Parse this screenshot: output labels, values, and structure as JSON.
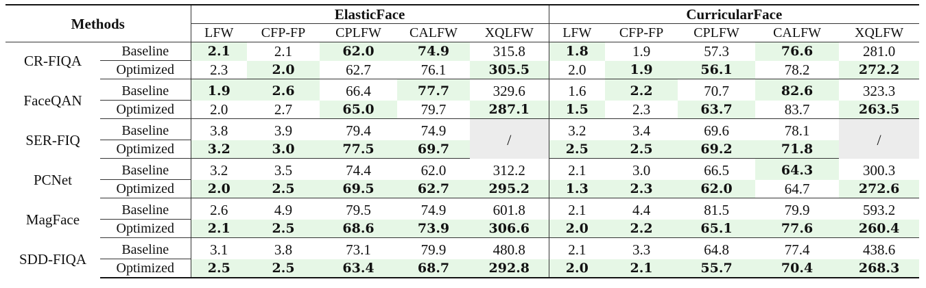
{
  "header": {
    "methods": "Methods",
    "groups": [
      "ElasticFace",
      "CurricularFace"
    ],
    "columns": [
      "LFW",
      "CFP-FP",
      "CPLFW",
      "CALFW",
      "XQLFW"
    ]
  },
  "highlight_color": "#e6f7e6",
  "na_color": "#ececec",
  "rows": [
    {
      "method": "CR-FIQA",
      "baseline": {
        "label": "Baseline",
        "cells": [
          {
            "v": "2.1",
            "b": true,
            "hl": true
          },
          {
            "v": "2.1"
          },
          {
            "v": "62.0",
            "b": true,
            "hl": true
          },
          {
            "v": "74.9",
            "b": true,
            "hl": true
          },
          {
            "v": "315.8"
          },
          {
            "v": "1.8",
            "b": true,
            "hl": true
          },
          {
            "v": "1.9"
          },
          {
            "v": "57.3"
          },
          {
            "v": "76.6",
            "b": true,
            "hl": true
          },
          {
            "v": "281.0"
          }
        ]
      },
      "optimized": {
        "label": "Optimized",
        "cells": [
          {
            "v": "2.3"
          },
          {
            "v": "2.0",
            "b": true,
            "hl": true
          },
          {
            "v": "62.7"
          },
          {
            "v": "76.1"
          },
          {
            "v": "305.5",
            "b": true,
            "hl": true
          },
          {
            "v": "2.0"
          },
          {
            "v": "1.9",
            "b": true,
            "hl": true
          },
          {
            "v": "56.1",
            "b": true,
            "hl": true
          },
          {
            "v": "78.2"
          },
          {
            "v": "272.2",
            "b": true,
            "hl": true
          }
        ]
      }
    },
    {
      "method": "FaceQAN",
      "baseline": {
        "label": "Baseline",
        "cells": [
          {
            "v": "1.9",
            "b": true,
            "hl": true
          },
          {
            "v": "2.6",
            "b": true,
            "hl": true
          },
          {
            "v": "66.4"
          },
          {
            "v": "77.7",
            "b": true,
            "hl": true
          },
          {
            "v": "329.6"
          },
          {
            "v": "1.6"
          },
          {
            "v": "2.2",
            "b": true,
            "hl": true
          },
          {
            "v": "70.7"
          },
          {
            "v": "82.6",
            "b": true,
            "hl": true
          },
          {
            "v": "323.3"
          }
        ]
      },
      "optimized": {
        "label": "Optimized",
        "cells": [
          {
            "v": "2.0"
          },
          {
            "v": "2.7"
          },
          {
            "v": "65.0",
            "b": true,
            "hl": true
          },
          {
            "v": "79.7"
          },
          {
            "v": "287.1",
            "b": true,
            "hl": true
          },
          {
            "v": "1.5",
            "b": true,
            "hl": true
          },
          {
            "v": "2.3"
          },
          {
            "v": "63.7",
            "b": true,
            "hl": true
          },
          {
            "v": "83.7"
          },
          {
            "v": "263.5",
            "b": true,
            "hl": true
          }
        ]
      }
    },
    {
      "method": "SER-FIQ",
      "na": "/",
      "baseline": {
        "label": "Baseline",
        "cells": [
          {
            "v": "3.8"
          },
          {
            "v": "3.9"
          },
          {
            "v": "79.4"
          },
          {
            "v": "74.9"
          },
          {
            "na": true
          },
          {
            "v": "3.2"
          },
          {
            "v": "3.4"
          },
          {
            "v": "69.6"
          },
          {
            "v": "78.1"
          },
          {
            "na": true
          }
        ]
      },
      "optimized": {
        "label": "Optimized",
        "cells": [
          {
            "v": "3.2",
            "b": true,
            "hl": true
          },
          {
            "v": "3.0",
            "b": true,
            "hl": true
          },
          {
            "v": "77.5",
            "b": true,
            "hl": true
          },
          {
            "v": "69.7",
            "b": true,
            "hl": true
          },
          {
            "na": true
          },
          {
            "v": "2.5",
            "b": true,
            "hl": true
          },
          {
            "v": "2.5",
            "b": true,
            "hl": true
          },
          {
            "v": "69.2",
            "b": true,
            "hl": true
          },
          {
            "v": "71.8",
            "b": true,
            "hl": true
          },
          {
            "na": true
          }
        ]
      }
    },
    {
      "method": "PCNet",
      "baseline": {
        "label": "Baseline",
        "cells": [
          {
            "v": "3.2"
          },
          {
            "v": "3.5"
          },
          {
            "v": "74.4"
          },
          {
            "v": "62.0"
          },
          {
            "v": "312.2"
          },
          {
            "v": "2.1"
          },
          {
            "v": "3.0"
          },
          {
            "v": "66.5"
          },
          {
            "v": "64.3",
            "b": true,
            "hl": true
          },
          {
            "v": "300.3"
          }
        ]
      },
      "optimized": {
        "label": "Optimized",
        "cells": [
          {
            "v": "2.0",
            "b": true,
            "hl": true
          },
          {
            "v": "2.5",
            "b": true,
            "hl": true
          },
          {
            "v": "69.5",
            "b": true,
            "hl": true
          },
          {
            "v": "62.7",
            "b": true,
            "hl": true
          },
          {
            "v": "295.2",
            "b": true,
            "hl": true
          },
          {
            "v": "1.3",
            "b": true,
            "hl": true
          },
          {
            "v": "2.3",
            "b": true,
            "hl": true
          },
          {
            "v": "62.0",
            "b": true,
            "hl": true
          },
          {
            "v": "64.7"
          },
          {
            "v": "272.6",
            "b": true,
            "hl": true
          }
        ]
      }
    },
    {
      "method": "MagFace",
      "baseline": {
        "label": "Baseline",
        "cells": [
          {
            "v": "2.6"
          },
          {
            "v": "4.9"
          },
          {
            "v": "79.5"
          },
          {
            "v": "74.9"
          },
          {
            "v": "601.8"
          },
          {
            "v": "2.1"
          },
          {
            "v": "4.4"
          },
          {
            "v": "81.5"
          },
          {
            "v": "79.9"
          },
          {
            "v": "593.2"
          }
        ]
      },
      "optimized": {
        "label": "Optimized",
        "cells": [
          {
            "v": "2.1",
            "b": true,
            "hl": true
          },
          {
            "v": "2.5",
            "b": true,
            "hl": true
          },
          {
            "v": "68.6",
            "b": true,
            "hl": true
          },
          {
            "v": "73.9",
            "b": true,
            "hl": true
          },
          {
            "v": "306.6",
            "b": true,
            "hl": true
          },
          {
            "v": "2.0",
            "b": true,
            "hl": true
          },
          {
            "v": "2.2",
            "b": true,
            "hl": true
          },
          {
            "v": "65.1",
            "b": true,
            "hl": true
          },
          {
            "v": "77.6",
            "b": true,
            "hl": true
          },
          {
            "v": "260.4",
            "b": true,
            "hl": true
          }
        ]
      }
    },
    {
      "method": "SDD-FIQA",
      "baseline": {
        "label": "Baseline",
        "cells": [
          {
            "v": "3.1"
          },
          {
            "v": "3.8"
          },
          {
            "v": "73.1"
          },
          {
            "v": "79.9"
          },
          {
            "v": "480.8"
          },
          {
            "v": "2.1"
          },
          {
            "v": "3.3"
          },
          {
            "v": "64.8"
          },
          {
            "v": "77.4"
          },
          {
            "v": "438.6"
          }
        ]
      },
      "optimized": {
        "label": "Optimized",
        "cells": [
          {
            "v": "2.5",
            "b": true,
            "hl": true
          },
          {
            "v": "2.5",
            "b": true,
            "hl": true
          },
          {
            "v": "63.4",
            "b": true,
            "hl": true
          },
          {
            "v": "68.7",
            "b": true,
            "hl": true
          },
          {
            "v": "292.8",
            "b": true,
            "hl": true
          },
          {
            "v": "2.0",
            "b": true,
            "hl": true
          },
          {
            "v": "2.1",
            "b": true,
            "hl": true
          },
          {
            "v": "55.7",
            "b": true,
            "hl": true
          },
          {
            "v": "70.4",
            "b": true,
            "hl": true
          },
          {
            "v": "268.3",
            "b": true,
            "hl": true
          }
        ]
      }
    }
  ]
}
